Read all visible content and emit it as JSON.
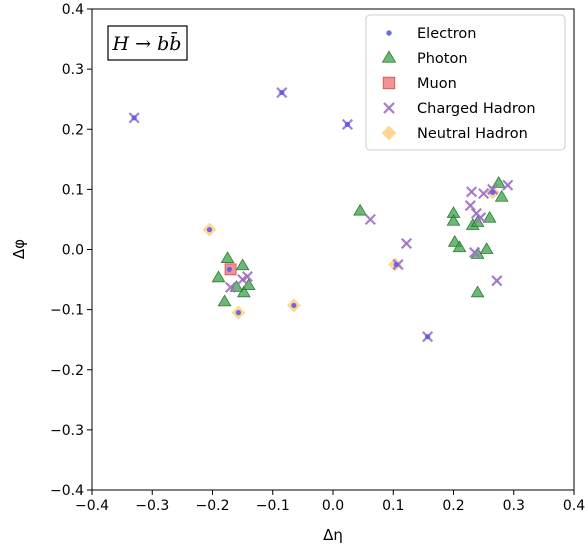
{
  "chart_data": {
    "type": "scatter",
    "xlabel": "Δη",
    "ylabel": "Δφ",
    "xlim": [
      -0.4,
      0.4
    ],
    "ylim": [
      -0.4,
      0.4
    ],
    "xticks": [
      "−0.4",
      "−0.3",
      "−0.2",
      "−0.1",
      "0.0",
      "0.1",
      "0.2",
      "0.3",
      "0.4"
    ],
    "yticks": [
      "−0.4",
      "−0.3",
      "−0.2",
      "−0.1",
      "0.0",
      "0.1",
      "0.2",
      "0.3",
      "0.4"
    ],
    "grid": false,
    "legend_position": "top-right",
    "annotation": "H → bb̄",
    "series": [
      {
        "name": "Electron",
        "marker": "circle",
        "color": "#5b5bf0",
        "points": [
          [
            -0.33,
            0.219
          ],
          [
            -0.085,
            0.261
          ],
          [
            0.024,
            0.208
          ],
          [
            -0.205,
            0.033
          ],
          [
            -0.172,
            -0.033
          ],
          [
            -0.157,
            -0.105
          ],
          [
            -0.065,
            -0.093
          ],
          [
            0.105,
            -0.025
          ],
          [
            0.157,
            -0.145
          ],
          [
            0.265,
            0.095
          ]
        ]
      },
      {
        "name": "Photon",
        "marker": "triangle",
        "color": "#3ca048",
        "points": [
          [
            -0.175,
            -0.015
          ],
          [
            -0.19,
            -0.047
          ],
          [
            -0.18,
            -0.087
          ],
          [
            -0.15,
            -0.027
          ],
          [
            -0.16,
            -0.063
          ],
          [
            -0.148,
            -0.072
          ],
          [
            -0.14,
            -0.06
          ],
          [
            0.045,
            0.064
          ],
          [
            0.2,
            0.06
          ],
          [
            0.2,
            0.047
          ],
          [
            0.202,
            0.012
          ],
          [
            0.21,
            0.003
          ],
          [
            0.232,
            0.04
          ],
          [
            0.24,
            0.045
          ],
          [
            0.24,
            -0.008
          ],
          [
            0.24,
            -0.072
          ],
          [
            0.255,
            0.0
          ],
          [
            0.26,
            0.052
          ],
          [
            0.275,
            0.11
          ],
          [
            0.28,
            0.087
          ]
        ]
      },
      {
        "name": "Muon",
        "marker": "square",
        "color": "#f08080",
        "points": [
          [
            -0.17,
            -0.033
          ]
        ]
      },
      {
        "name": "Charged Hadron",
        "marker": "x",
        "color": "#a070c8",
        "points": [
          [
            -0.33,
            0.219
          ],
          [
            -0.085,
            0.261
          ],
          [
            0.024,
            0.208
          ],
          [
            0.062,
            0.05
          ],
          [
            0.122,
            0.01
          ],
          [
            0.108,
            -0.025
          ],
          [
            0.157,
            -0.145
          ],
          [
            -0.142,
            -0.045
          ],
          [
            -0.15,
            -0.05
          ],
          [
            -0.17,
            -0.063
          ],
          [
            0.23,
            0.096
          ],
          [
            0.228,
            0.073
          ],
          [
            0.238,
            0.06
          ],
          [
            0.245,
            0.053
          ],
          [
            0.25,
            0.093
          ],
          [
            0.235,
            -0.005
          ],
          [
            0.272,
            -0.052
          ],
          [
            0.29,
            0.107
          ],
          [
            0.265,
            0.1
          ]
        ]
      },
      {
        "name": "Neutral Hadron",
        "marker": "diamond",
        "color": "#ffc86e",
        "points": [
          [
            -0.205,
            0.033
          ],
          [
            -0.157,
            -0.105
          ],
          [
            -0.065,
            -0.093
          ],
          [
            0.103,
            -0.025
          ],
          [
            0.265,
            0.095
          ]
        ]
      }
    ]
  }
}
